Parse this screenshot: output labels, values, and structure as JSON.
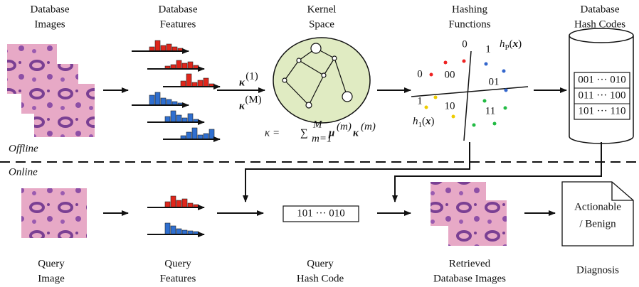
{
  "top_labels": [
    [
      "Database",
      "Images"
    ],
    [
      "Database",
      "Features"
    ],
    [
      "Kernel",
      "Space"
    ],
    [
      "Hashing",
      "Functions"
    ],
    [
      "Database",
      "Hash Codes"
    ]
  ],
  "bottom_labels": [
    [
      "Query",
      "Image"
    ],
    [
      "Query",
      "Features"
    ],
    [
      "Query",
      "Hash Code"
    ],
    [
      "Retrieved",
      "Database Images"
    ],
    [
      "Diagnosis"
    ]
  ],
  "offline_label": "Offline",
  "online_label": "Online",
  "kernel": {
    "k1": "κ",
    "k1_sup": "(1)",
    "kM": "κ",
    "kM_sup": "(M)",
    "formula": {
      "lhs": "κ = ",
      "sum": "∑",
      "sub": "m=1",
      "sup": "M",
      "mu": "μ",
      "mu_sup": "(m)",
      "k": "κ",
      "k_sup": "(m)"
    }
  },
  "hashing": {
    "bits_top": [
      "0",
      "1"
    ],
    "bits_left": [
      "0",
      "1"
    ],
    "regions": [
      "00",
      "01",
      "10",
      "11"
    ],
    "h_p": {
      "h": "h",
      "sub": "P",
      "open": "(",
      "x": "x",
      "close": ")"
    },
    "h_1": {
      "h": "h",
      "sub": "1",
      "open": "(",
      "x": "x",
      "close": ")"
    }
  },
  "db_hash_codes": [
    "001 ··· 010",
    "011 ··· 100",
    "101 ··· 110"
  ],
  "query_hash_code": "101 ··· 010",
  "diagnosis_doc": [
    "Actionable",
    "/ Benign"
  ]
}
